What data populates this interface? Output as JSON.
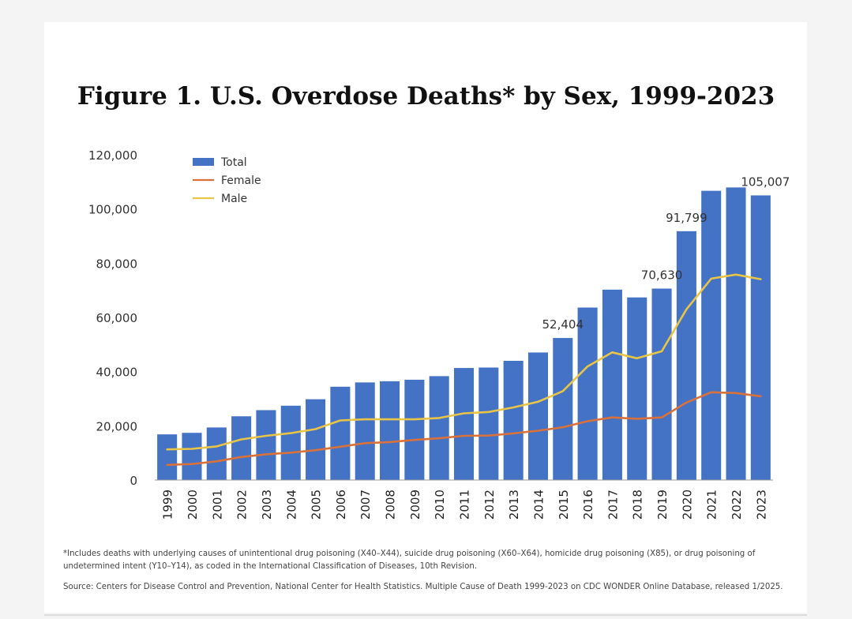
{
  "chart_data": {
    "type": "bar",
    "title": "Figure 1. U.S. Overdose Deaths* by Sex, 1999-2023",
    "categories": [
      "1999",
      "2000",
      "2001",
      "2002",
      "2003",
      "2004",
      "2005",
      "2006",
      "2007",
      "2008",
      "2009",
      "2010",
      "2011",
      "2012",
      "2013",
      "2014",
      "2015",
      "2016",
      "2017",
      "2018",
      "2019",
      "2020",
      "2021",
      "2022",
      "2023"
    ],
    "series": [
      {
        "name": "Total",
        "kind": "bar",
        "color": "#4472c4",
        "values": [
          16849,
          17415,
          19394,
          23518,
          25785,
          27424,
          29813,
          34425,
          36010,
          36450,
          37004,
          38329,
          41340,
          41502,
          43982,
          47055,
          52404,
          63632,
          70237,
          67367,
          70630,
          91799,
          106699,
          107941,
          105007
        ]
      },
      {
        "name": "Female",
        "kind": "line",
        "color": "#d9713b",
        "values": [
          5600,
          5900,
          6900,
          8500,
          9500,
          10100,
          11000,
          12300,
          13600,
          14000,
          14800,
          15400,
          16300,
          16400,
          17200,
          18200,
          19500,
          21700,
          23100,
          22600,
          23100,
          28600,
          32400,
          32100,
          30900
        ]
      },
      {
        "name": "Male",
        "kind": "line",
        "color": "#e8c547",
        "values": [
          11300,
          11500,
          12400,
          15000,
          16300,
          17300,
          18800,
          22000,
          22400,
          22400,
          22400,
          22900,
          24600,
          25100,
          26800,
          28900,
          32800,
          41900,
          47100,
          44900,
          47500,
          63000,
          74300,
          75800,
          74100
        ]
      }
    ],
    "data_labels": [
      {
        "category": "2015",
        "text": "52,404"
      },
      {
        "category": "2019",
        "text": "70,630"
      },
      {
        "category": "2020",
        "text": "91,799"
      },
      {
        "category": "2023",
        "text": "105,007"
      }
    ],
    "y_ticks": [
      "0",
      "20,000",
      "40,000",
      "60,000",
      "80,000",
      "100,000",
      "120,000"
    ],
    "ylim": [
      0,
      120000
    ],
    "xlabel": "",
    "ylabel": "",
    "grid": false,
    "legend_position": "top-left"
  },
  "footnote": "*Includes deaths with underlying causes of unintentional drug poisoning (X40–X44), suicide drug poisoning (X60–X64), homicide drug poisoning (X85), or drug poisoning of undetermined intent (Y10–Y14), as coded in the International Classification of Diseases, 10th Revision.",
  "source": "Source: Centers for Disease Control and Prevention, National Center for Health Statistics. Multiple Cause of Death 1999-2023 on CDC WONDER Online Database, released 1/2025."
}
